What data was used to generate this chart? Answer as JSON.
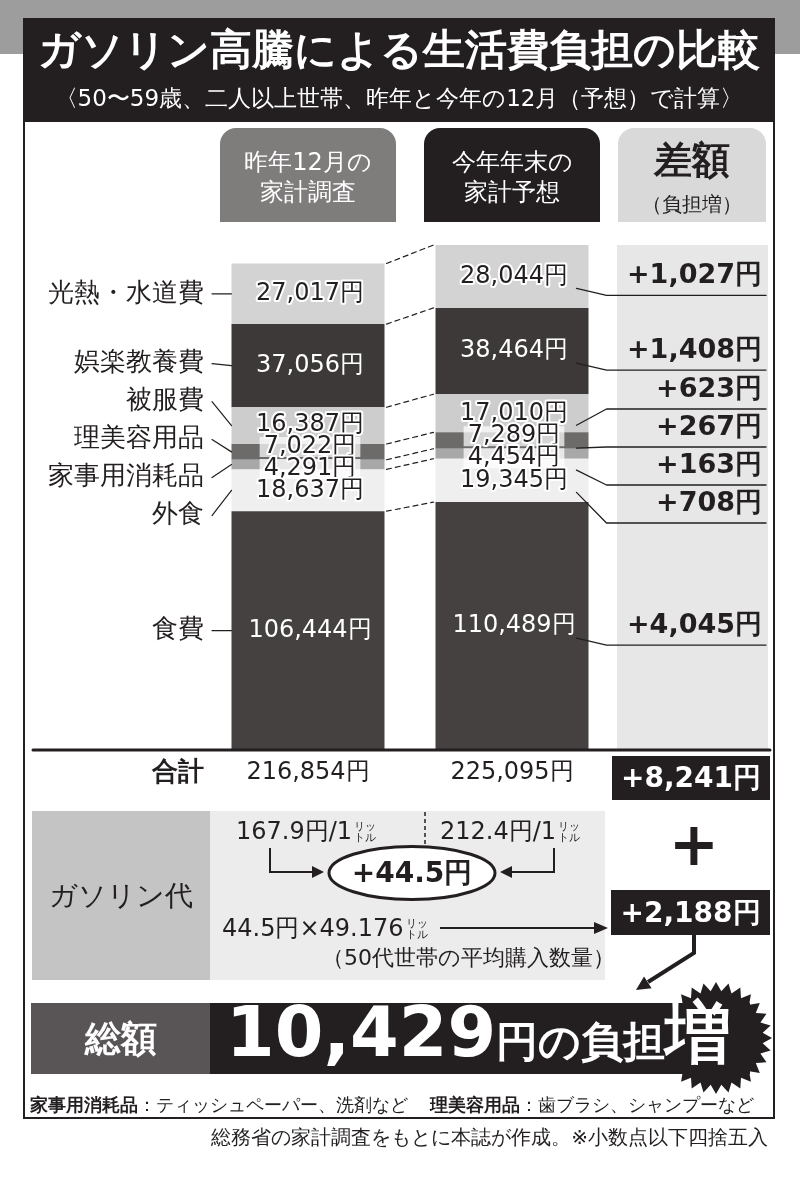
{
  "chart_data": {
    "type": "bar",
    "title": "ガソリン高騰による生活費負担の比較",
    "subtitle": "〈50〜59歳、二人以上世帯、昨年と今年の12月（予想）で計算〉",
    "categories": [
      "昨年12月の家計調査",
      "今年年末の家計予想"
    ],
    "stacked": true,
    "tick_labels": "x",
    "series": [
      {
        "name": "食費",
        "color": "#454141",
        "values": [
          106444,
          110489
        ],
        "value_labels": [
          "106,444円",
          "110,489円"
        ]
      },
      {
        "name": "外食",
        "color": "#efefef",
        "values": [
          18637,
          19345
        ],
        "value_labels": [
          "18,637円",
          "19,345円"
        ]
      },
      {
        "name": "家事用消耗品",
        "color": "#a8a8a8",
        "values": [
          4291,
          4454
        ],
        "value_labels": [
          "4,291円",
          "4,454円"
        ]
      },
      {
        "name": "理美容用品",
        "color": "#6d6a6a",
        "values": [
          7022,
          7289
        ],
        "value_labels": [
          "7,022円",
          "7,289円"
        ]
      },
      {
        "name": "被服費",
        "color": "#cdcdcd",
        "values": [
          16387,
          17010
        ],
        "value_labels": [
          "16,387円",
          "17,010円"
        ]
      },
      {
        "name": "娯楽教養費",
        "color": "#3d3939",
        "values": [
          37056,
          38464
        ],
        "value_labels": [
          "37,056円",
          "38,464円"
        ]
      },
      {
        "name": "光熱・水道費",
        "color": "#d3d3d3",
        "values": [
          27017,
          28044
        ],
        "value_labels": [
          "27,017円",
          "28,044円"
        ]
      }
    ],
    "totals": [
      "216,854円",
      "225,095円"
    ],
    "annotations": [
      "+4,045円",
      "+708円",
      "+163円",
      "+267円",
      "+623円",
      "+1,408円",
      "+1,027円",
      "差額",
      "（負担増）",
      "合計",
      "+8,241円",
      "ガソリン代",
      "167.9円/1リットル",
      "212.4円/1リットル",
      "+44.5円",
      "44.5円×49.176リットル",
      "（50代世帯の平均購入数量）",
      "+",
      "+2,188円",
      "総額",
      "10,429",
      "円の負担",
      "増",
      "家事用消耗品",
      "：ティッシュペーパー、洗剤など",
      "理美容用品",
      "：歯ブラシ、シャンプーなど",
      "総務省の家計調査をもとに本誌が作成。※小数点以下四捨五入"
    ]
  }
}
